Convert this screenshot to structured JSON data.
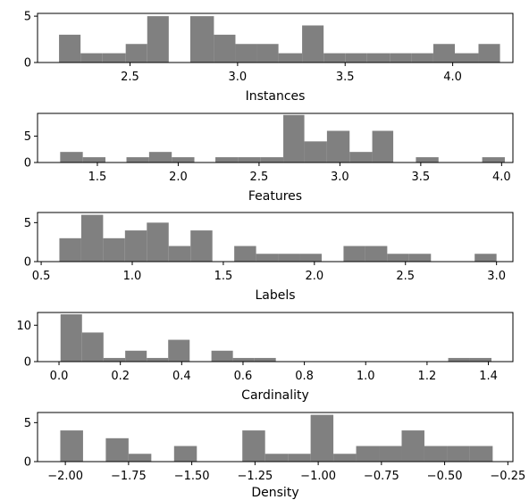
{
  "chart_data": [
    {
      "type": "bar",
      "xlabel": "Instances",
      "xlim": [
        2.07,
        4.28
      ],
      "ylim": [
        0,
        5.3
      ],
      "xticks": [
        "2.5",
        "3.0",
        "3.5",
        "4.0"
      ],
      "xtick_values": [
        2.5,
        3.0,
        3.5,
        4.0
      ],
      "yticks": [
        "0",
        "5"
      ],
      "ytick_values": [
        0,
        5
      ],
      "bin_edges": [
        2.17,
        2.27,
        2.37,
        2.48,
        2.58,
        2.68,
        2.78,
        2.89,
        2.99,
        3.09,
        3.19,
        3.3,
        3.4,
        3.5,
        3.6,
        3.71,
        3.81,
        3.91,
        4.01,
        4.12,
        4.22
      ],
      "values": [
        3,
        1,
        1,
        2,
        5,
        0,
        5,
        3,
        2,
        2,
        1,
        4,
        1,
        1,
        1,
        1,
        1,
        2,
        1,
        2
      ],
      "color": "#808080",
      "grid": false
    },
    {
      "type": "bar",
      "xlabel": "Features",
      "xlim": [
        1.13,
        4.07
      ],
      "ylim": [
        0,
        9.3
      ],
      "xticks": [
        "1.5",
        "2.0",
        "2.5",
        "3.0",
        "3.5",
        "4.0"
      ],
      "xtick_values": [
        1.5,
        2.0,
        2.5,
        3.0,
        3.5,
        4.0
      ],
      "yticks": [
        "0",
        "5"
      ],
      "ytick_values": [
        0,
        5
      ],
      "bin_edges": [
        1.27,
        1.41,
        1.55,
        1.68,
        1.82,
        1.96,
        2.1,
        2.23,
        2.37,
        2.51,
        2.65,
        2.78,
        2.92,
        3.06,
        3.2,
        3.33,
        3.47,
        3.61,
        3.75,
        3.88,
        4.02
      ],
      "values": [
        2,
        1,
        0,
        1,
        2,
        1,
        0,
        1,
        1,
        1,
        9,
        4,
        6,
        2,
        6,
        0,
        1,
        0,
        0,
        1
      ],
      "color": "#808080",
      "grid": false
    },
    {
      "type": "bar",
      "xlabel": "Labels",
      "xlim": [
        0.48,
        3.09
      ],
      "ylim": [
        0,
        6.3
      ],
      "xticks": [
        "0.5",
        "1.0",
        "1.5",
        "2.0",
        "2.5",
        "3.0"
      ],
      "xtick_values": [
        0.5,
        1.0,
        1.5,
        2.0,
        2.5,
        3.0
      ],
      "yticks": [
        "0",
        "5"
      ],
      "ytick_values": [
        0,
        5
      ],
      "bin_edges": [
        0.6,
        0.72,
        0.84,
        0.96,
        1.08,
        1.2,
        1.32,
        1.44,
        1.56,
        1.68,
        1.8,
        1.92,
        2.04,
        2.16,
        2.28,
        2.4,
        2.52,
        2.64,
        2.76,
        2.88,
        3.0
      ],
      "values": [
        3,
        6,
        3,
        4,
        5,
        2,
        4,
        0,
        2,
        1,
        1,
        1,
        0,
        2,
        2,
        1,
        1,
        0,
        0,
        1
      ],
      "color": "#808080",
      "grid": false
    },
    {
      "type": "bar",
      "xlabel": "Cardinality",
      "xlim": [
        -0.07,
        1.48
      ],
      "ylim": [
        0,
        13.5
      ],
      "xticks": [
        "0.0",
        "0.2",
        "0.4",
        "0.6",
        "0.8",
        "1.0",
        "1.2",
        "1.4"
      ],
      "xtick_values": [
        0.0,
        0.2,
        0.4,
        0.6,
        0.8,
        1.0,
        1.2,
        1.4
      ],
      "yticks": [
        "0",
        "10"
      ],
      "ytick_values": [
        0,
        10
      ],
      "bin_edges": [
        0.005,
        0.075,
        0.145,
        0.216,
        0.286,
        0.356,
        0.426,
        0.497,
        0.567,
        0.637,
        0.707,
        0.778,
        0.848,
        0.918,
        0.988,
        1.059,
        1.129,
        1.199,
        1.269,
        1.34,
        1.41
      ],
      "values": [
        13,
        8,
        1,
        3,
        1,
        6,
        0,
        3,
        1,
        1,
        0,
        0,
        0,
        0,
        0,
        0,
        0,
        0,
        1,
        1
      ],
      "color": "#808080",
      "grid": false
    },
    {
      "type": "bar",
      "xlabel": "Density",
      "xlim": [
        -2.11,
        -0.23
      ],
      "ylim": [
        0,
        6.3
      ],
      "xticks": [
        "−2.00",
        "−1.75",
        "−1.50",
        "−1.25",
        "−1.00",
        "−0.75",
        "−0.50",
        "−0.25"
      ],
      "xtick_values": [
        -2.0,
        -1.75,
        -1.5,
        -1.25,
        -1.0,
        -0.75,
        -0.5,
        -0.25
      ],
      "yticks": [
        "0",
        "5"
      ],
      "ytick_values": [
        0,
        5
      ],
      "bin_edges": [
        -2.02,
        -1.93,
        -1.84,
        -1.75,
        -1.66,
        -1.57,
        -1.48,
        -1.39,
        -1.3,
        -1.21,
        -1.12,
        -1.03,
        -0.94,
        -0.85,
        -0.76,
        -0.67,
        -0.58,
        -0.49,
        -0.4,
        -0.31
      ],
      "values": [
        4,
        0,
        3,
        1,
        0,
        2,
        0,
        0,
        4,
        1,
        1,
        6,
        1,
        2,
        2,
        4,
        2,
        2,
        2
      ],
      "color": "#808080",
      "grid": false
    }
  ]
}
